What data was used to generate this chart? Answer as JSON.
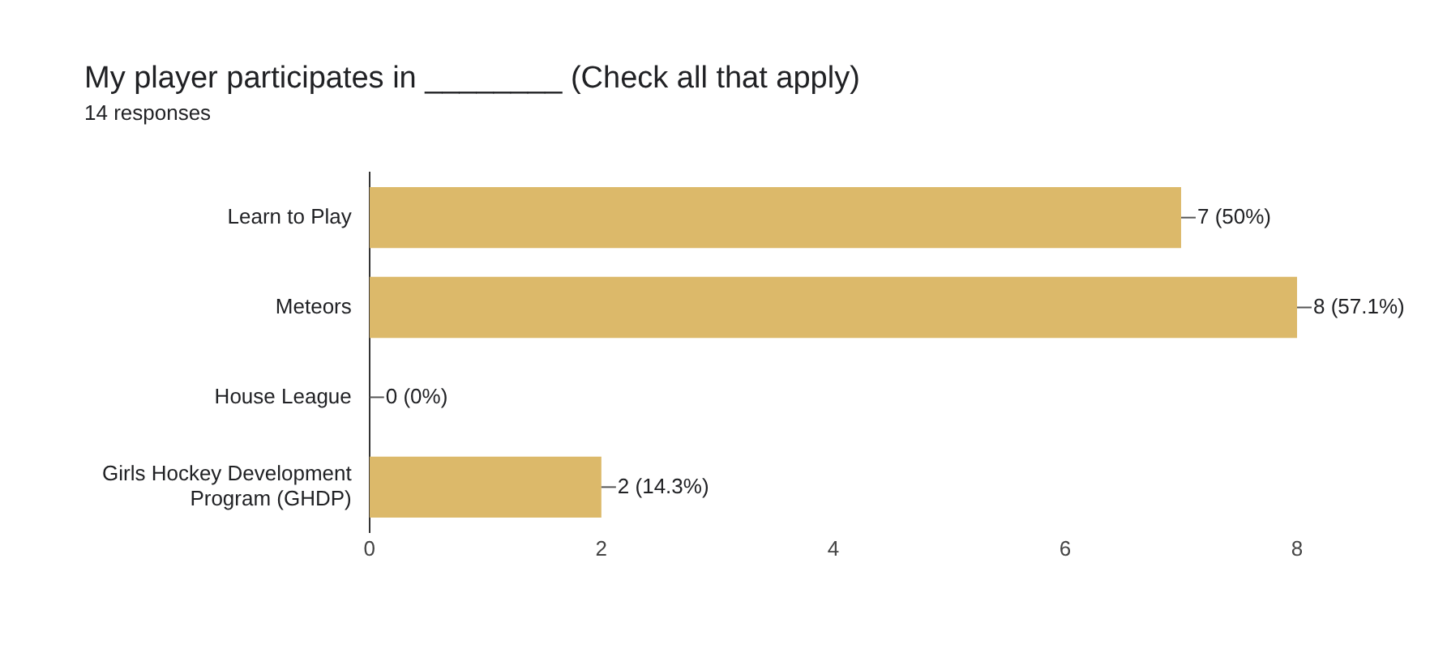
{
  "chart_data": {
    "type": "bar",
    "orientation": "horizontal",
    "title": "My player participates in ________ (Check all that apply)",
    "subtitle": "14 responses",
    "categories": [
      "Learn to Play",
      "Meteors",
      "House League",
      "Girls Hockey Development Program (GHDP)"
    ],
    "values": [
      7,
      8,
      0,
      2
    ],
    "color": "#dcb96a",
    "value_labels": [
      "7 (50%)",
      "8 (57.1%)",
      "0 (0%)",
      "2 (14.3%)"
    ],
    "xlim": [
      0,
      8
    ],
    "xticks": [
      0,
      2,
      4,
      6,
      8
    ],
    "grid": false,
    "legend": false
  }
}
